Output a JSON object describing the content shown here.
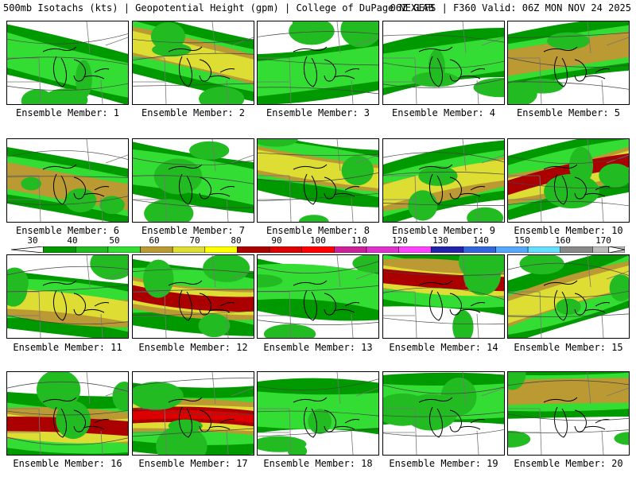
{
  "header": {
    "left": "500mb Isotachs (kts) | Geopotential Height (gpm) | College of DuPage NEXLAB",
    "right": "06Z GEFS | F360 Valid: 06Z MON NOV 24 2025"
  },
  "colorbar": {
    "ticks": [
      "30",
      "40",
      "50",
      "60",
      "70",
      "80",
      "90",
      "100",
      "110",
      "120",
      "130",
      "140",
      "150",
      "160",
      "170"
    ],
    "colors": [
      "#009900",
      "#22bb22",
      "#33dd33",
      "#bb9933",
      "#dddd33",
      "#ffff00",
      "#aa0000",
      "#dd0000",
      "#ff0000",
      "#cc2299",
      "#dd33cc",
      "#ff44ff",
      "#2222aa",
      "#3366dd",
      "#55aaff",
      "#66ddff",
      "#888888",
      "#bbbbbb"
    ]
  },
  "members": [
    {
      "label": "Ensemble Member: 1",
      "level": 0.35
    },
    {
      "label": "Ensemble Member: 2",
      "level": 0.7
    },
    {
      "label": "Ensemble Member: 3",
      "level": 0.4
    },
    {
      "label": "Ensemble Member: 4",
      "level": 0.35
    },
    {
      "label": "Ensemble Member: 5",
      "level": 0.5
    },
    {
      "label": "Ensemble Member: 6",
      "level": 0.55
    },
    {
      "label": "Ensemble Member: 7",
      "level": 0.4
    },
    {
      "label": "Ensemble Member: 8",
      "level": 0.6
    },
    {
      "label": "Ensemble Member: 9",
      "level": 0.65
    },
    {
      "label": "Ensemble Member: 10",
      "level": 0.75
    },
    {
      "label": "Ensemble Member: 11",
      "level": 0.6
    },
    {
      "label": "Ensemble Member: 12",
      "level": 0.85
    },
    {
      "label": "Ensemble Member: 13",
      "level": 0.4
    },
    {
      "label": "Ensemble Member: 14",
      "level": 0.8
    },
    {
      "label": "Ensemble Member: 15",
      "level": 0.7
    },
    {
      "label": "Ensemble Member: 16",
      "level": 0.85
    },
    {
      "label": "Ensemble Member: 17",
      "level": 0.95
    },
    {
      "label": "Ensemble Member: 18",
      "level": 0.4
    },
    {
      "label": "Ensemble Member: 19",
      "level": 0.35
    },
    {
      "label": "Ensemble Member: 20",
      "level": 0.45
    }
  ]
}
